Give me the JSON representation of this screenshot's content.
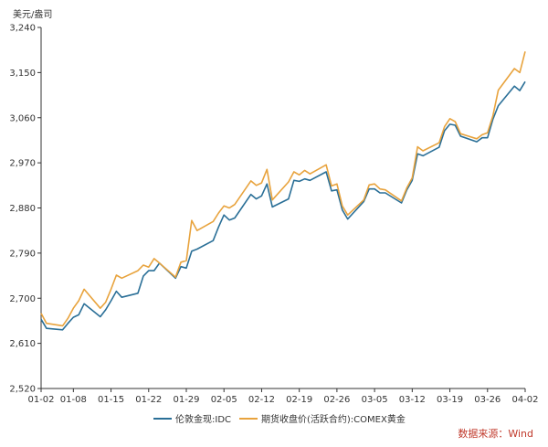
{
  "chart_data": {
    "type": "line",
    "title": "",
    "y_unit": "美元/盎司",
    "ylim": [
      2520,
      3240
    ],
    "y_ticks": [
      "2,520",
      "2,610",
      "2,700",
      "2,790",
      "2,880",
      "2,970",
      "3,060",
      "3,150",
      "3,240"
    ],
    "y_tick_values": [
      2520,
      2610,
      2700,
      2790,
      2880,
      2970,
      3060,
      3150,
      3240
    ],
    "x_ticks": [
      "01-02",
      "01-08",
      "01-15",
      "01-22",
      "01-29",
      "02-05",
      "02-12",
      "02-19",
      "02-26",
      "03-05",
      "03-12",
      "03-19",
      "03-26",
      "04-02"
    ],
    "x_start": "01-02",
    "x_end": "04-02",
    "grid": false,
    "legend_position": "bottom",
    "series": [
      {
        "name": "伦敦金现:IDC",
        "color": "#2a6f97",
        "points": [
          [
            "01-02",
            2658
          ],
          [
            "01-03",
            2640
          ],
          [
            "01-06",
            2637
          ],
          [
            "01-07",
            2650
          ],
          [
            "01-08",
            2662
          ],
          [
            "01-09",
            2667
          ],
          [
            "01-10",
            2689
          ],
          [
            "01-13",
            2663
          ],
          [
            "01-14",
            2677
          ],
          [
            "01-15",
            2695
          ],
          [
            "01-16",
            2714
          ],
          [
            "01-17",
            2702
          ],
          [
            "01-20",
            2710
          ],
          [
            "01-21",
            2744
          ],
          [
            "01-22",
            2755
          ],
          [
            "01-23",
            2755
          ],
          [
            "01-24",
            2770
          ],
          [
            "01-27",
            2740
          ],
          [
            "01-28",
            2763
          ],
          [
            "01-29",
            2760
          ],
          [
            "01-30",
            2794
          ],
          [
            "01-31",
            2798
          ],
          [
            "02-03",
            2815
          ],
          [
            "02-04",
            2842
          ],
          [
            "02-05",
            2866
          ],
          [
            "02-06",
            2856
          ],
          [
            "02-07",
            2860
          ],
          [
            "02-10",
            2907
          ],
          [
            "02-11",
            2898
          ],
          [
            "02-12",
            2904
          ],
          [
            "02-13",
            2928
          ],
          [
            "02-14",
            2882
          ],
          [
            "02-17",
            2898
          ],
          [
            "02-18",
            2935
          ],
          [
            "02-19",
            2933
          ],
          [
            "02-20",
            2938
          ],
          [
            "02-21",
            2935
          ],
          [
            "02-24",
            2952
          ],
          [
            "02-25",
            2914
          ],
          [
            "02-26",
            2916
          ],
          [
            "02-27",
            2876
          ],
          [
            "02-28",
            2858
          ],
          [
            "03-03",
            2893
          ],
          [
            "03-04",
            2918
          ],
          [
            "03-05",
            2918
          ],
          [
            "03-06",
            2910
          ],
          [
            "03-07",
            2910
          ],
          [
            "03-10",
            2890
          ],
          [
            "03-11",
            2916
          ],
          [
            "03-12",
            2935
          ],
          [
            "03-13",
            2988
          ],
          [
            "03-14",
            2984
          ],
          [
            "03-17",
            3001
          ],
          [
            "03-18",
            3034
          ],
          [
            "03-19",
            3047
          ],
          [
            "03-20",
            3045
          ],
          [
            "03-21",
            3023
          ],
          [
            "03-24",
            3012
          ],
          [
            "03-25",
            3020
          ],
          [
            "03-26",
            3020
          ],
          [
            "03-27",
            3057
          ],
          [
            "03-28",
            3084
          ],
          [
            "03-31",
            3123
          ],
          [
            "04-01",
            3114
          ],
          [
            "04-02",
            3132
          ]
        ]
      },
      {
        "name": "期货收盘价(活跃合约):COMEX黄金",
        "color": "#e8a33d",
        "points": [
          [
            "01-02",
            2670
          ],
          [
            "01-03",
            2650
          ],
          [
            "01-06",
            2645
          ],
          [
            "01-07",
            2660
          ],
          [
            "01-08",
            2680
          ],
          [
            "01-09",
            2695
          ],
          [
            "01-10",
            2718
          ],
          [
            "01-13",
            2680
          ],
          [
            "01-14",
            2692
          ],
          [
            "01-15",
            2718
          ],
          [
            "01-16",
            2746
          ],
          [
            "01-17",
            2740
          ],
          [
            "01-20",
            2755
          ],
          [
            "01-21",
            2766
          ],
          [
            "01-22",
            2762
          ],
          [
            "01-23",
            2779
          ],
          [
            "01-24",
            2770
          ],
          [
            "01-27",
            2742
          ],
          [
            "01-28",
            2772
          ],
          [
            "01-29",
            2775
          ],
          [
            "01-30",
            2855
          ],
          [
            "01-31",
            2835
          ],
          [
            "02-03",
            2853
          ],
          [
            "02-04",
            2870
          ],
          [
            "02-05",
            2884
          ],
          [
            "02-06",
            2880
          ],
          [
            "02-07",
            2887
          ],
          [
            "02-10",
            2934
          ],
          [
            "02-11",
            2925
          ],
          [
            "02-12",
            2930
          ],
          [
            "02-13",
            2957
          ],
          [
            "02-14",
            2896
          ],
          [
            "02-17",
            2932
          ],
          [
            "02-18",
            2952
          ],
          [
            "02-19",
            2946
          ],
          [
            "02-20",
            2955
          ],
          [
            "02-21",
            2948
          ],
          [
            "02-24",
            2966
          ],
          [
            "02-25",
            2924
          ],
          [
            "02-26",
            2928
          ],
          [
            "02-27",
            2884
          ],
          [
            "02-28",
            2866
          ],
          [
            "03-03",
            2896
          ],
          [
            "03-04",
            2926
          ],
          [
            "03-05",
            2928
          ],
          [
            "03-06",
            2918
          ],
          [
            "03-07",
            2916
          ],
          [
            "03-10",
            2894
          ],
          [
            "03-11",
            2920
          ],
          [
            "03-12",
            2940
          ],
          [
            "03-13",
            3002
          ],
          [
            "03-14",
            2994
          ],
          [
            "03-17",
            3010
          ],
          [
            "03-18",
            3042
          ],
          [
            "03-19",
            3058
          ],
          [
            "03-20",
            3052
          ],
          [
            "03-21",
            3028
          ],
          [
            "03-24",
            3018
          ],
          [
            "03-25",
            3026
          ],
          [
            "03-26",
            3030
          ],
          [
            "03-27",
            3064
          ],
          [
            "03-28",
            3115
          ],
          [
            "03-31",
            3158
          ],
          [
            "04-01",
            3150
          ],
          [
            "04-02",
            3192
          ]
        ]
      }
    ]
  },
  "footer": {
    "source": "数据来源：Wind"
  }
}
